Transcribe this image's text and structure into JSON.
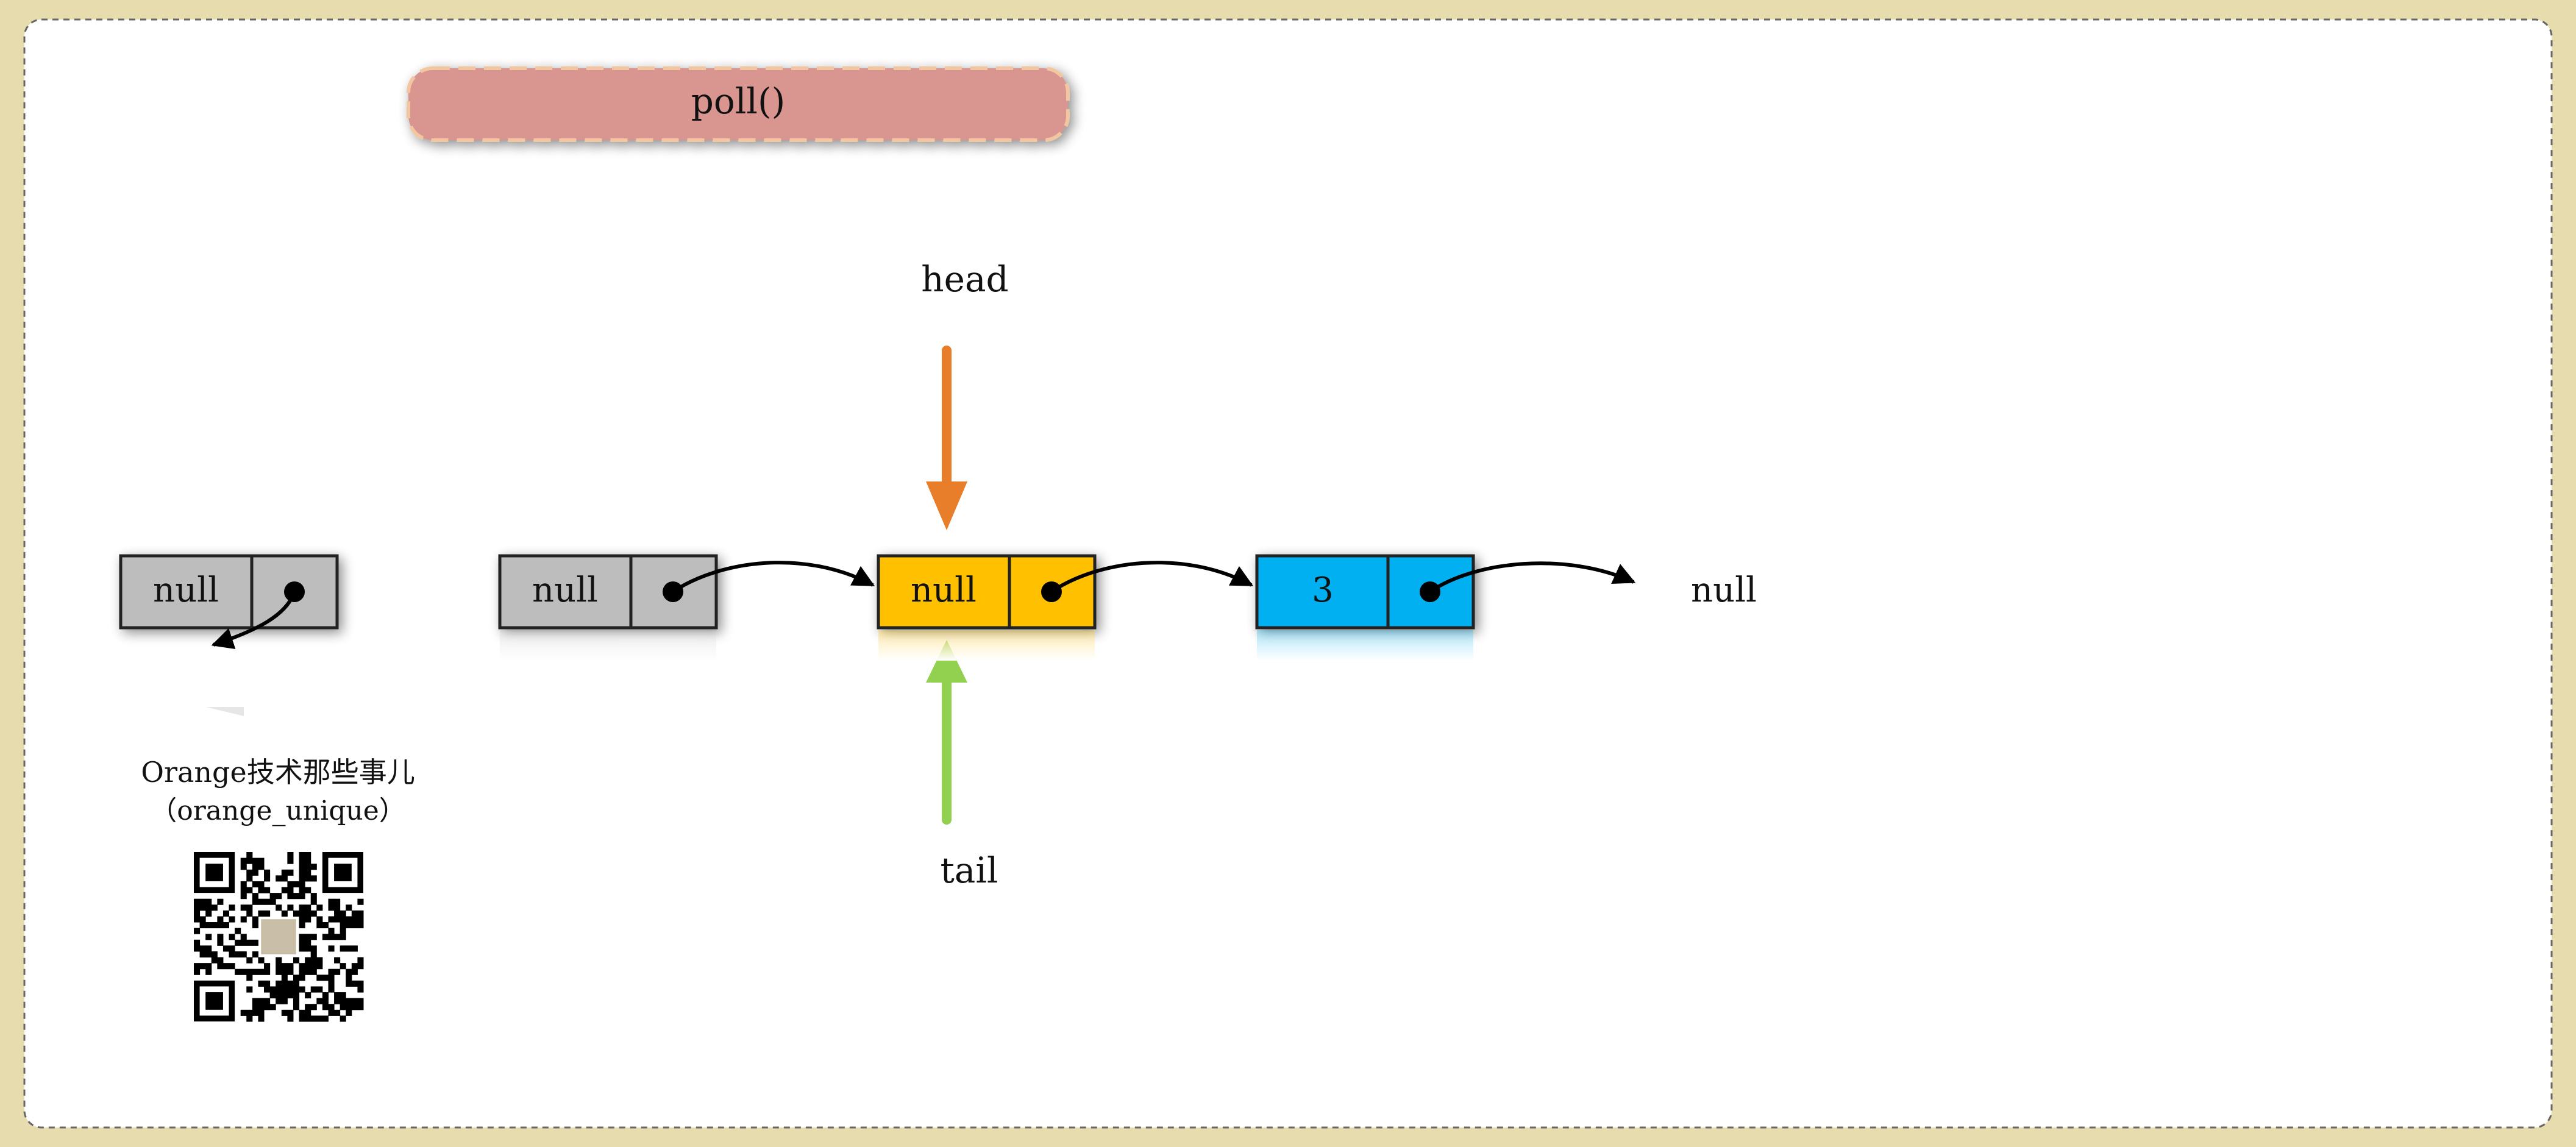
{
  "title": "poll()",
  "labels": {
    "head": "head",
    "tail": "tail",
    "terminal_null": "null"
  },
  "nodes": {
    "orphan": {
      "value": "null",
      "fill": "#bdbdbd"
    },
    "old_head": {
      "value": "null",
      "fill": "#bdbdbd"
    },
    "current": {
      "value": "null",
      "fill": "#ffc000"
    },
    "next": {
      "value": "3",
      "fill": "#00b0f0"
    }
  },
  "colors": {
    "title_fill": "#d99690",
    "title_border": "#f2c6a0",
    "head_arrow": "#e87d2a",
    "tail_arrow": "#92d050",
    "frame_border": "#666666",
    "background": "#e6dcad"
  },
  "footer": {
    "line1": "Orange技术那些事儿",
    "line2": "（orange_unique）",
    "qr_icon": "qr-code-icon"
  }
}
